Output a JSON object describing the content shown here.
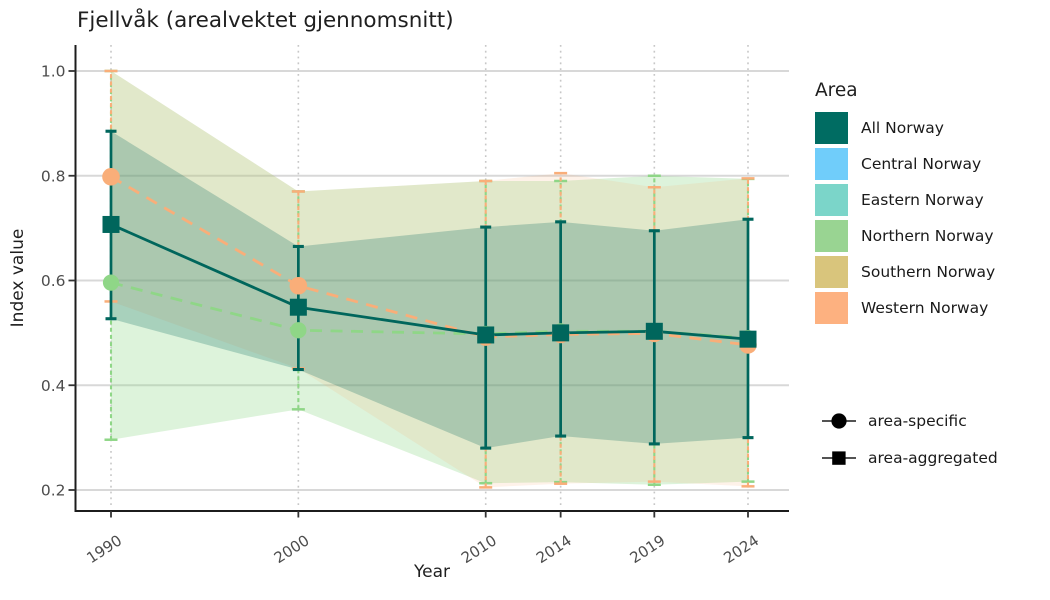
{
  "title": "Fjellvåk (arealvektet gjennomsnitt)",
  "axes": {
    "xlabel": "Year",
    "ylabel": "Index value"
  },
  "legend": {
    "title": "Area",
    "items": [
      {
        "label": "All Norway",
        "color": "#006C62"
      },
      {
        "label": "Central Norway",
        "color": "#70CDFA"
      },
      {
        "label": "Eastern Norway",
        "color": "#7BD5C9"
      },
      {
        "label": "Northern Norway",
        "color": "#99D492"
      },
      {
        "label": "Southern Norway",
        "color": "#D9C57C"
      },
      {
        "label": "Western Norway",
        "color": "#FDB180"
      }
    ],
    "shapes": [
      {
        "label": "area-specific",
        "shape": "circle"
      },
      {
        "label": "area-aggregated",
        "shape": "square"
      }
    ]
  },
  "chart_data": {
    "type": "line",
    "title": "Fjellvåk (arealvektet gjennomsnitt)",
    "xlabel": "Year",
    "ylabel": "Index value",
    "x": [
      1990,
      2000,
      2010,
      2014,
      2019,
      2024
    ],
    "x_tick_labels": [
      "1990",
      "2000",
      "2010",
      "2014",
      "2019",
      "2024"
    ],
    "y_ticks": [
      0.2,
      0.4,
      0.6,
      0.8,
      1.0
    ],
    "ylim": [
      0.16,
      1.05
    ],
    "grid": {
      "horizontal": "solid",
      "vertical": "dotted"
    },
    "legend_position": "right",
    "series": [
      {
        "name": "Northern Norway",
        "kind": "area-specific",
        "marker": "circle",
        "linetype": "dashed",
        "color": "#8FD687",
        "band_alpha": 0.3,
        "values": [
          0.596,
          0.505,
          0.498,
          0.503,
          0.503,
          0.49
        ],
        "ci_lower": [
          0.296,
          0.354,
          0.213,
          0.215,
          0.21,
          0.216
        ],
        "ci_upper": [
          1.0,
          0.77,
          0.79,
          0.79,
          0.8,
          0.794
        ]
      },
      {
        "name": "Western Norway",
        "kind": "area-specific",
        "marker": "circle",
        "linetype": "dashed",
        "color": "#F9AE79",
        "band_alpha": 0.16,
        "values": [
          0.798,
          0.59,
          0.492,
          0.497,
          0.499,
          0.477
        ],
        "ci_lower": [
          0.56,
          0.432,
          0.205,
          0.212,
          0.216,
          0.207
        ],
        "ci_upper": [
          1.0,
          0.77,
          0.79,
          0.805,
          0.778,
          0.795
        ]
      },
      {
        "name": "All Norway",
        "kind": "area-aggregated",
        "marker": "square",
        "linetype": "solid",
        "color": "#00665C",
        "band_alpha": 0.24,
        "values": [
          0.707,
          0.549,
          0.496,
          0.5,
          0.503,
          0.488
        ],
        "ci_lower": [
          0.527,
          0.43,
          0.28,
          0.303,
          0.288,
          0.3
        ],
        "ci_upper": [
          0.885,
          0.665,
          0.702,
          0.712,
          0.695,
          0.717
        ]
      }
    ]
  }
}
